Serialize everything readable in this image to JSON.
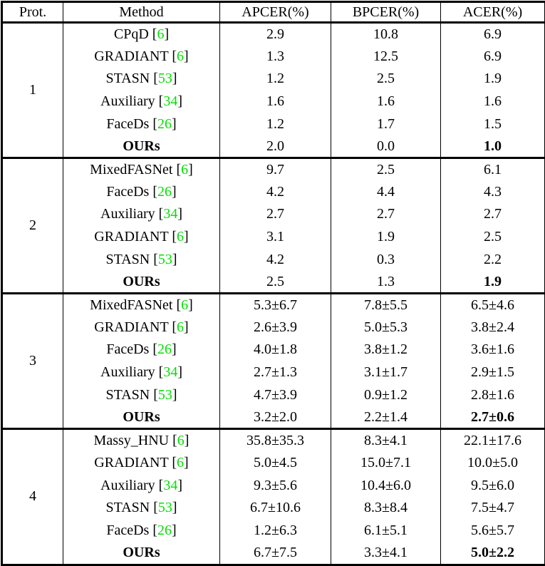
{
  "colors": {
    "citation": "#00e000",
    "border": "#000000",
    "text": "#000000",
    "background": "#ffffff"
  },
  "punct": {
    "open": " [",
    "close": "]"
  },
  "table": {
    "headers": [
      "Prot.",
      "Method",
      "APCER(%)",
      "BPCER(%)",
      "ACER(%)"
    ],
    "sections": [
      {
        "protocol": "1",
        "rows": [
          {
            "method": "CPqD",
            "ref": "6",
            "apcer": "2.9",
            "bpcer": "10.8",
            "acer": "6.9"
          },
          {
            "method": "GRADIANT",
            "ref": "6",
            "apcer": "1.3",
            "bpcer": "12.5",
            "acer": "6.9"
          },
          {
            "method": "STASN",
            "ref": "53",
            "apcer": "1.2",
            "bpcer": "2.5",
            "acer": "1.9"
          },
          {
            "method": "Auxiliary",
            "ref": "34",
            "apcer": "1.6",
            "bpcer": "1.6",
            "acer": "1.6"
          },
          {
            "method": "FaceDs",
            "ref": "26",
            "apcer": "1.2",
            "bpcer": "1.7",
            "acer": "1.5"
          },
          {
            "method": "OURs",
            "ref": null,
            "apcer": "2.0",
            "bpcer": "0.0",
            "acer": "1.0",
            "is_ours": true
          }
        ]
      },
      {
        "protocol": "2",
        "rows": [
          {
            "method": "MixedFASNet",
            "ref": "6",
            "apcer": "9.7",
            "bpcer": "2.5",
            "acer": "6.1"
          },
          {
            "method": "FaceDs",
            "ref": "26",
            "apcer": "4.2",
            "bpcer": "4.4",
            "acer": "4.3"
          },
          {
            "method": "Auxiliary",
            "ref": "34",
            "apcer": "2.7",
            "bpcer": "2.7",
            "acer": "2.7"
          },
          {
            "method": "GRADIANT",
            "ref": "6",
            "apcer": "3.1",
            "bpcer": "1.9",
            "acer": "2.5"
          },
          {
            "method": "STASN",
            "ref": "53",
            "apcer": "4.2",
            "bpcer": "0.3",
            "acer": "2.2"
          },
          {
            "method": "OURs",
            "ref": null,
            "apcer": "2.5",
            "bpcer": "1.3",
            "acer": "1.9",
            "is_ours": true
          }
        ]
      },
      {
        "protocol": "3",
        "rows": [
          {
            "method": "MixedFASNet",
            "ref": "6",
            "apcer": "5.3±6.7",
            "bpcer": "7.8±5.5",
            "acer": "6.5±4.6"
          },
          {
            "method": "GRADIANT",
            "ref": "6",
            "apcer": "2.6±3.9",
            "bpcer": "5.0±5.3",
            "acer": "3.8±2.4"
          },
          {
            "method": "FaceDs",
            "ref": "26",
            "apcer": "4.0±1.8",
            "bpcer": "3.8±1.2",
            "acer": "3.6±1.6"
          },
          {
            "method": "Auxiliary",
            "ref": "34",
            "apcer": "2.7±1.3",
            "bpcer": "3.1±1.7",
            "acer": "2.9±1.5"
          },
          {
            "method": "STASN",
            "ref": "53",
            "apcer": "4.7±3.9",
            "bpcer": "0.9±1.2",
            "acer": "2.8±1.6"
          },
          {
            "method": "OURs",
            "ref": null,
            "apcer": "3.2±2.0",
            "bpcer": "2.2±1.4",
            "acer": "2.7±0.6",
            "is_ours": true
          }
        ]
      },
      {
        "protocol": "4",
        "rows": [
          {
            "method": "Massy_HNU",
            "ref": "6",
            "apcer": "35.8±35.3",
            "bpcer": "8.3±4.1",
            "acer": "22.1±17.6"
          },
          {
            "method": "GRADIANT",
            "ref": "6",
            "apcer": "5.0±4.5",
            "bpcer": "15.0±7.1",
            "acer": "10.0±5.0"
          },
          {
            "method": "Auxiliary",
            "ref": "34",
            "apcer": "9.3±5.6",
            "bpcer": "10.4±6.0",
            "acer": "9.5±6.0"
          },
          {
            "method": "STASN",
            "ref": "53",
            "apcer": "6.7±10.6",
            "bpcer": "8.3±8.4",
            "acer": "7.5±4.7"
          },
          {
            "method": "FaceDs",
            "ref": "26",
            "apcer": "1.2±6.3",
            "bpcer": "6.1±5.1",
            "acer": "5.6±5.7"
          },
          {
            "method": "OURs",
            "ref": null,
            "apcer": "6.7±7.5",
            "bpcer": "3.3±4.1",
            "acer": "5.0±2.2",
            "is_ours": true
          }
        ]
      }
    ]
  }
}
